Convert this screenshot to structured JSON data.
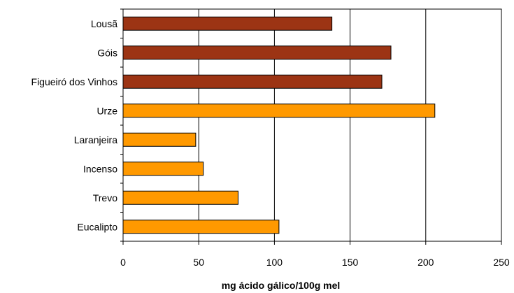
{
  "chart_data": {
    "type": "bar",
    "orientation": "horizontal",
    "categories": [
      "Lousã",
      "Góis",
      "Figueiró dos Vinhos",
      "Urze",
      "Laranjeira",
      "Incenso",
      "Trevo",
      "Eucalipto"
    ],
    "values": [
      138,
      177,
      171,
      206,
      48,
      53,
      76,
      103
    ],
    "bar_colors": [
      "#9c3414",
      "#9c3414",
      "#9c3414",
      "#ff9900",
      "#ff9900",
      "#ff9900",
      "#ff9900",
      "#ff9900"
    ],
    "xlabel": "mg ácido gálico/100g mel",
    "ylabel": "",
    "xlim": [
      0,
      250
    ],
    "xticks": [
      0,
      50,
      100,
      150,
      200,
      250
    ],
    "xtick_labels": [
      "0",
      "50",
      "100",
      "150",
      "200",
      "250"
    ],
    "grid": "vertical",
    "legend": "none"
  }
}
